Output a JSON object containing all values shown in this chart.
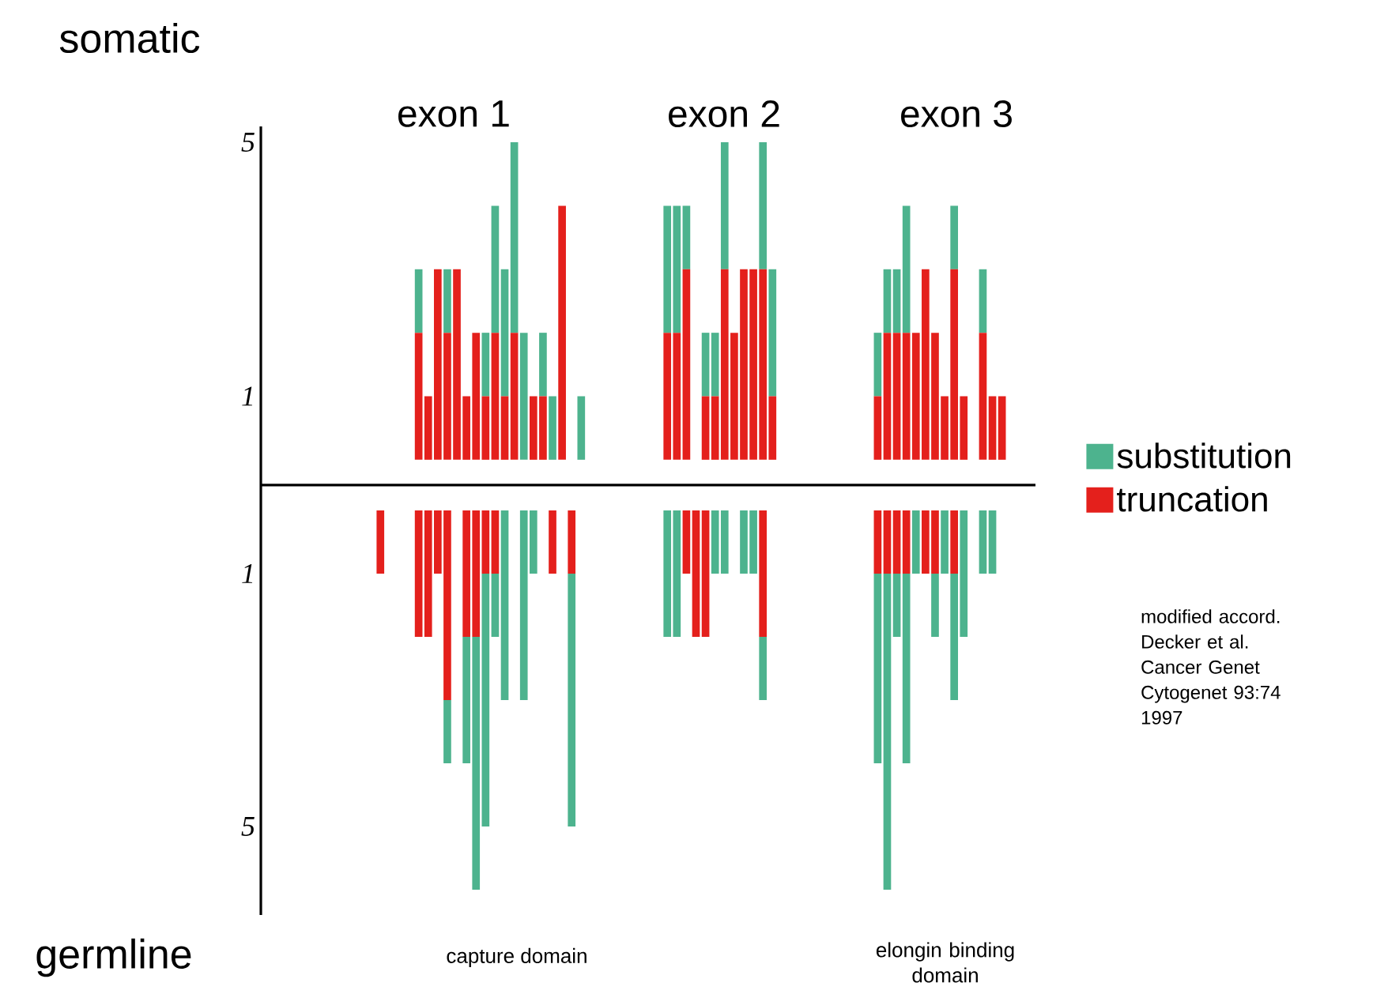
{
  "chart_data": [
    {
      "type": "bar",
      "title": "somatic",
      "stacked": true,
      "tick_labels": "y",
      "legend": "right",
      "annotations": [
        "exon 1",
        "exon 2",
        "exon 3"
      ],
      "categories": [
        null,
        null,
        null,
        null,
        null,
        null,
        null,
        null,
        null,
        null,
        null,
        null,
        null,
        null,
        null,
        null,
        null,
        null,
        null,
        null,
        null,
        null,
        null,
        null,
        null,
        null,
        null,
        null,
        null,
        null,
        null,
        null,
        null,
        null,
        null,
        null,
        null,
        null,
        null,
        null,
        null,
        null,
        null,
        null,
        null,
        null,
        null,
        null,
        null,
        null,
        null,
        null,
        null,
        null,
        null,
        null,
        null,
        null,
        null,
        null,
        null,
        null,
        null,
        null,
        null,
        null,
        null,
        null,
        null,
        null,
        null,
        null,
        null,
        null,
        null,
        null,
        null,
        null,
        null,
        null,
        null
      ],
      "ylim": [
        -0.4,
        5.25
      ],
      "yticks": [
        1,
        5
      ],
      "series": [
        {
          "name": "truncation",
          "color": "#e4201c",
          "values": [
            null,
            null,
            null,
            null,
            null,
            null,
            null,
            null,
            null,
            null,
            null,
            null,
            null,
            null,
            null,
            null,
            2,
            1,
            3,
            2,
            3,
            1,
            2,
            1,
            2,
            1,
            2,
            0,
            1,
            1,
            0,
            4,
            null,
            0,
            null,
            null,
            null,
            null,
            null,
            null,
            null,
            null,
            2,
            2,
            3,
            null,
            1,
            1,
            3,
            2,
            3,
            3,
            3,
            1,
            null,
            null,
            null,
            null,
            null,
            null,
            null,
            null,
            null,
            null,
            1,
            2,
            2,
            2,
            2,
            3,
            2,
            1,
            3,
            1,
            null,
            2,
            1,
            1,
            null,
            null,
            null
          ]
        },
        {
          "name": "substitution",
          "color": "#4db38e",
          "values": [
            null,
            null,
            null,
            null,
            null,
            null,
            null,
            null,
            null,
            null,
            null,
            null,
            null,
            null,
            null,
            null,
            1,
            0,
            0,
            1,
            0,
            0,
            0,
            1,
            2,
            2,
            3,
            2,
            0,
            1,
            1,
            0,
            null,
            1,
            null,
            null,
            null,
            null,
            null,
            null,
            null,
            null,
            2,
            2,
            1,
            null,
            1,
            1,
            2,
            0,
            0,
            0,
            2,
            2,
            null,
            null,
            null,
            null,
            null,
            null,
            null,
            null,
            null,
            null,
            1,
            1,
            1,
            2,
            0,
            0,
            0,
            0,
            1,
            0,
            null,
            1,
            0,
            0,
            null,
            null,
            null
          ]
        }
      ]
    },
    {
      "type": "bar",
      "title": "germline",
      "stacked": true,
      "tick_labels": "y",
      "annotations": [
        "capture domain",
        "elongin binding domain",
        "modified accord. Decker et al. Cancer Genet Cytogenet 93:74 1997"
      ],
      "categories": [
        null,
        null,
        null,
        null,
        null,
        null,
        null,
        null,
        null,
        null,
        null,
        null,
        null,
        null,
        null,
        null,
        null,
        null,
        null,
        null,
        null,
        null,
        null,
        null,
        null,
        null,
        null,
        null,
        null,
        null,
        null,
        null,
        null,
        null,
        null,
        null,
        null,
        null,
        null,
        null,
        null,
        null,
        null,
        null,
        null,
        null,
        null,
        null,
        null,
        null,
        null,
        null,
        null,
        null,
        null,
        null,
        null,
        null,
        null,
        null,
        null,
        null,
        null,
        null,
        null,
        null,
        null,
        null,
        null,
        null,
        null,
        null,
        null,
        null,
        null,
        null,
        null,
        null,
        null,
        null,
        null
      ],
      "ylim": [
        6.4,
        -0.4
      ],
      "yticks": [
        1,
        5
      ],
      "series": [
        {
          "color": "#e4201c",
          "values": [
            null,
            null,
            null,
            null,
            null,
            null,
            null,
            null,
            null,
            null,
            null,
            null,
            1,
            null,
            null,
            null,
            2,
            2,
            1,
            3,
            null,
            2,
            2,
            1,
            1,
            0,
            null,
            0,
            0,
            null,
            1,
            null,
            1,
            null,
            null,
            null,
            null,
            null,
            null,
            null,
            null,
            null,
            0,
            0,
            1,
            2,
            2,
            0,
            0,
            null,
            0,
            0,
            2,
            null,
            null,
            null,
            null,
            null,
            null,
            null,
            null,
            null,
            null,
            null,
            1,
            1,
            1,
            1,
            0,
            1,
            1,
            0,
            1,
            0,
            null,
            0,
            0,
            null,
            null,
            null,
            null
          ]
        },
        {
          "color": "#4db38e",
          "values": [
            null,
            null,
            null,
            null,
            null,
            null,
            null,
            null,
            null,
            null,
            null,
            null,
            0,
            null,
            null,
            null,
            0,
            0,
            0,
            1,
            null,
            2,
            4,
            4,
            1,
            3,
            null,
            3,
            1,
            null,
            0,
            null,
            4,
            null,
            null,
            null,
            null,
            null,
            null,
            null,
            null,
            null,
            2,
            2,
            0,
            0,
            0,
            1,
            1,
            null,
            1,
            1,
            1,
            null,
            null,
            null,
            null,
            null,
            null,
            null,
            null,
            null,
            null,
            null,
            3,
            5,
            1,
            3,
            1,
            0,
            1,
            1,
            2,
            2,
            null,
            1,
            1,
            null,
            null,
            null,
            null
          ]
        }
      ]
    }
  ]
}
